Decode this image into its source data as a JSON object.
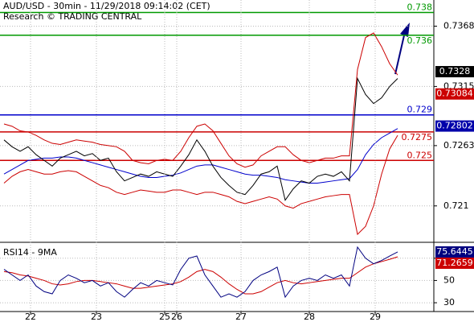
{
  "chart_data": [
    {
      "type": "line",
      "title": "AUD/USD - 30min - 11/29/2018 09:14:02 (CET)",
      "subtitle": "Research © TRADING CENTRAL",
      "x": [
        0,
        1,
        2,
        3,
        4,
        5,
        6,
        7,
        8,
        9,
        10,
        11,
        12,
        13,
        14,
        15,
        16,
        17,
        18,
        19,
        20,
        21,
        22,
        23,
        24,
        25,
        26,
        27,
        28,
        29,
        30,
        31,
        32,
        33,
        34,
        35,
        36,
        37,
        38,
        39,
        40,
        41,
        42,
        43,
        44,
        45,
        46,
        47,
        48,
        49
      ],
      "xlim": [
        -0.5,
        53.5
      ],
      "ylim": [
        0.7178,
        0.7391
      ],
      "yticks": [
        0.7368,
        0.7315,
        0.7263,
        0.721
      ],
      "series": [
        {
          "color": "#cc0000",
          "values": [
            0.7282,
            0.728,
            0.7276,
            0.7275,
            0.7272,
            0.7268,
            0.7265,
            0.7264,
            0.7266,
            0.7268,
            0.7267,
            0.7266,
            0.7264,
            0.7263,
            0.7262,
            0.7258,
            0.725,
            0.7248,
            0.7247,
            0.725,
            0.7251,
            0.725,
            0.7258,
            0.727,
            0.728,
            0.7282,
            0.7276,
            0.7265,
            0.7254,
            0.7247,
            0.7244,
            0.7246,
            0.7254,
            0.7258,
            0.7262,
            0.7262,
            0.7255,
            0.725,
            0.7248,
            0.725,
            0.7252,
            0.7252,
            0.7254,
            0.7254,
            0.733,
            0.7358,
            0.7362,
            0.735,
            0.7335,
            0.7325
          ]
        },
        {
          "color": "#0000cc",
          "values": [
            0.7238,
            0.7242,
            0.7246,
            0.725,
            0.7251,
            0.7252,
            0.7252,
            0.7253,
            0.7253,
            0.7252,
            0.725,
            0.7248,
            0.7246,
            0.7244,
            0.7242,
            0.724,
            0.7238,
            0.7236,
            0.7235,
            0.7235,
            0.7236,
            0.7237,
            0.7239,
            0.7242,
            0.7245,
            0.7246,
            0.7246,
            0.7244,
            0.7242,
            0.724,
            0.7238,
            0.7237,
            0.7237,
            0.7236,
            0.7235,
            0.7233,
            0.7232,
            0.7231,
            0.723,
            0.723,
            0.7231,
            0.7232,
            0.7233,
            0.7234,
            0.7242,
            0.7255,
            0.7264,
            0.727,
            0.7274,
            0.7278
          ]
        },
        {
          "color": "#cc0000",
          "values": [
            0.723,
            0.7236,
            0.724,
            0.7242,
            0.724,
            0.7238,
            0.7238,
            0.724,
            0.7241,
            0.724,
            0.7236,
            0.7232,
            0.7228,
            0.7226,
            0.7222,
            0.722,
            0.7222,
            0.7224,
            0.7223,
            0.7222,
            0.7222,
            0.7224,
            0.7224,
            0.7222,
            0.722,
            0.7222,
            0.7222,
            0.722,
            0.7218,
            0.7214,
            0.7212,
            0.7214,
            0.7216,
            0.7218,
            0.7216,
            0.721,
            0.7208,
            0.7212,
            0.7214,
            0.7216,
            0.7218,
            0.7219,
            0.722,
            0.722,
            0.7185,
            0.7192,
            0.721,
            0.7238,
            0.726,
            0.7272
          ]
        },
        {
          "color": "#000000",
          "values": [
            0.7268,
            0.7262,
            0.7258,
            0.7262,
            0.7255,
            0.725,
            0.7245,
            0.7252,
            0.7255,
            0.7258,
            0.7254,
            0.7256,
            0.725,
            0.7252,
            0.724,
            0.7232,
            0.7235,
            0.7238,
            0.7236,
            0.724,
            0.7238,
            0.7236,
            0.7245,
            0.7255,
            0.7268,
            0.7258,
            0.7245,
            0.7235,
            0.7228,
            0.7222,
            0.722,
            0.7228,
            0.7238,
            0.724,
            0.7245,
            0.7215,
            0.7225,
            0.7232,
            0.723,
            0.7236,
            0.7238,
            0.7236,
            0.724,
            0.7232,
            0.7322,
            0.7308,
            0.73,
            0.7305,
            0.7315,
            0.7322
          ]
        }
      ],
      "levels": [
        {
          "value": 0.738,
          "color": "#009900"
        },
        {
          "value": 0.736,
          "color": "#009900"
        },
        {
          "value": 0.729,
          "color": "#0000cc"
        },
        {
          "value": 0.7275,
          "color": "#cc0000"
        },
        {
          "value": 0.725,
          "color": "#cc0000"
        }
      ],
      "price_tags": [
        {
          "value": 0.7328,
          "color": "#000000"
        },
        {
          "value": 0.73084,
          "color": "#cc0000"
        },
        {
          "value": 0.72802,
          "color": "#0000aa"
        }
      ]
    },
    {
      "type": "line",
      "title": "RSI14 - 9MA",
      "x": [
        0,
        1,
        2,
        3,
        4,
        5,
        6,
        7,
        8,
        9,
        10,
        11,
        12,
        13,
        14,
        15,
        16,
        17,
        18,
        19,
        20,
        21,
        22,
        23,
        24,
        25,
        26,
        27,
        28,
        29,
        30,
        31,
        32,
        33,
        34,
        35,
        36,
        37,
        38,
        39,
        40,
        41,
        42,
        43,
        44,
        45,
        46,
        47,
        48,
        49
      ],
      "xlim": [
        -0.5,
        53.5
      ],
      "xticks": [
        {
          "value": 3.3,
          "label": "22"
        },
        {
          "value": 11.5,
          "label": "23"
        },
        {
          "value": 20,
          "label": "25"
        },
        {
          "value": 21.5,
          "label": "26"
        },
        {
          "value": 29.5,
          "label": "27"
        },
        {
          "value": 38,
          "label": "28"
        },
        {
          "value": 46.2,
          "label": "29"
        }
      ],
      "ylim": [
        22.1,
        84.3
      ],
      "yticks": [
        70,
        50,
        30
      ],
      "series": [
        {
          "color": "#cc0000",
          "values": [
            58,
            57,
            55,
            54,
            52,
            50,
            47,
            46,
            47,
            49,
            50,
            50,
            49,
            48,
            47,
            45,
            43,
            43,
            44,
            45,
            46,
            47,
            49,
            53,
            58,
            60,
            58,
            53,
            47,
            42,
            38,
            38,
            40,
            44,
            48,
            50,
            48,
            47,
            48,
            49,
            50,
            51,
            52,
            52,
            57,
            62,
            65,
            67,
            69,
            71.2659
          ]
        },
        {
          "color": "#000080",
          "values": [
            60,
            55,
            50,
            55,
            45,
            40,
            38,
            50,
            55,
            52,
            48,
            50,
            45,
            48,
            40,
            35,
            42,
            48,
            45,
            50,
            48,
            46,
            60,
            70,
            72,
            55,
            45,
            35,
            38,
            35,
            40,
            50,
            55,
            58,
            62,
            35,
            45,
            50,
            52,
            50,
            55,
            52,
            55,
            45,
            80,
            70,
            65,
            68,
            72,
            75.6445
          ]
        }
      ]
    }
  ]
}
